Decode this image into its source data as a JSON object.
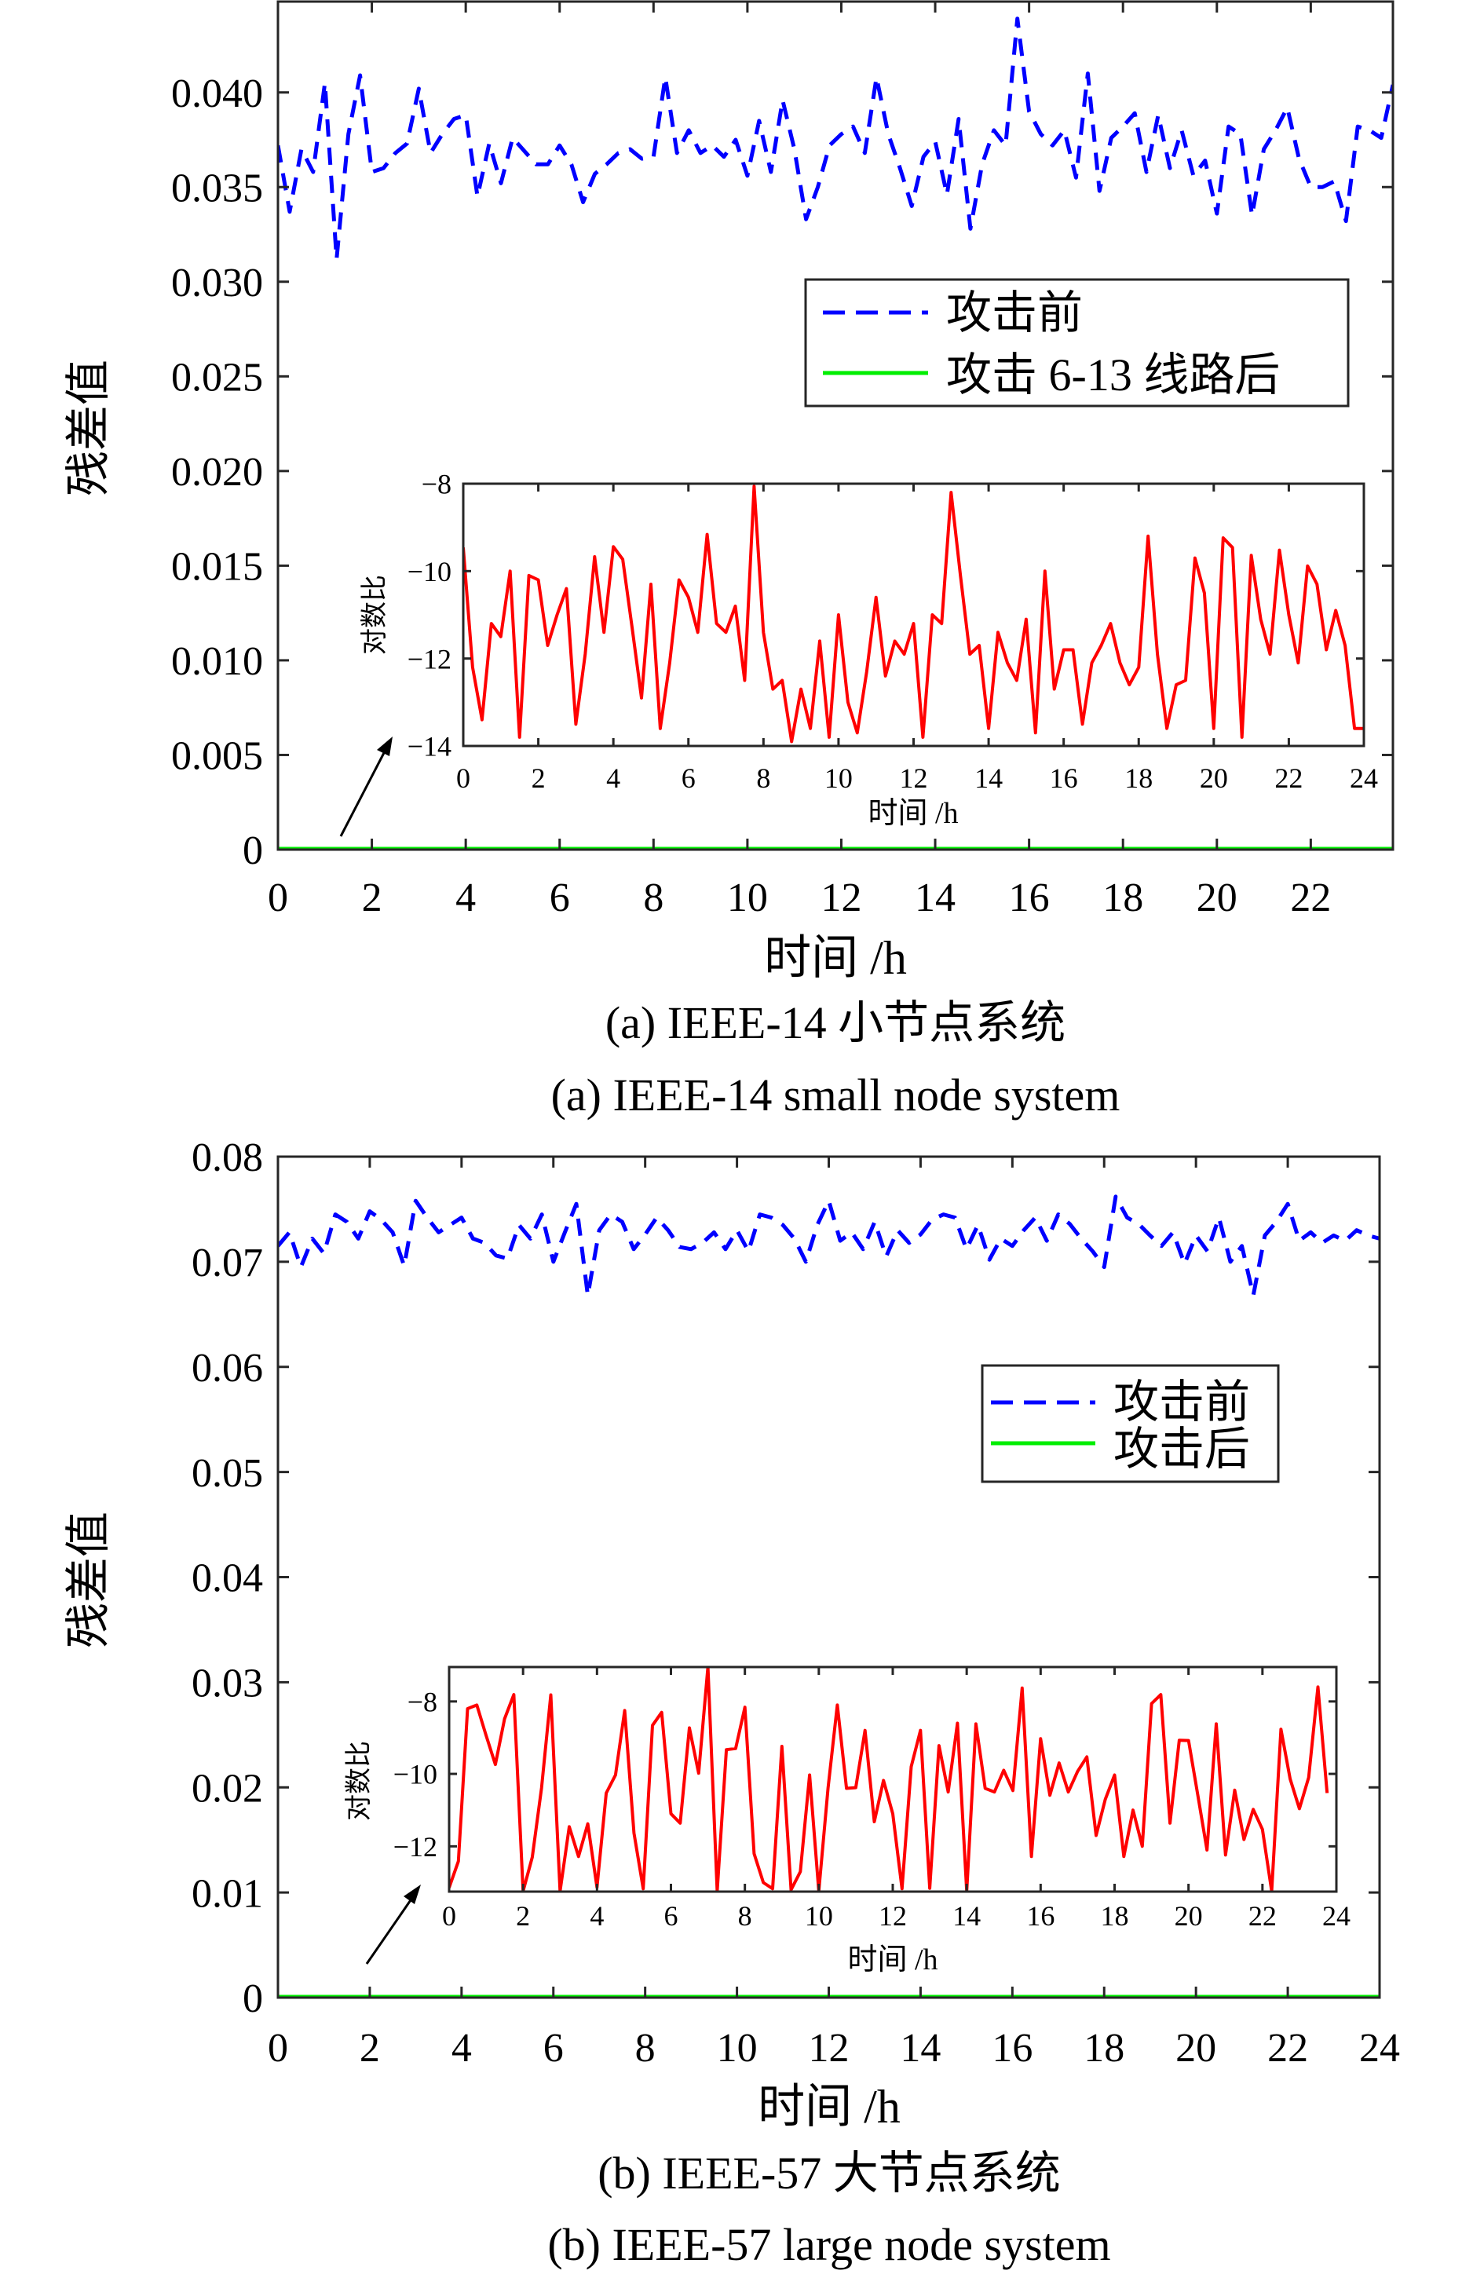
{
  "panels": [
    {
      "caption_cn": "(a) IEEE-14 小节点系统",
      "caption_en": "(a) IEEE-14 small node system",
      "xlabel": "时间 /h",
      "ylabel": "残差值",
      "legend": [
        "攻击前",
        "攻击 6-13 线路后"
      ],
      "inset_xlabel": "时间 /h",
      "inset_ylabel": "对数比"
    },
    {
      "caption_cn": "(b) IEEE-57 大节点系统",
      "caption_en": "(b) IEEE-57 large node system",
      "xlabel": "时间 /h",
      "ylabel": "残差值",
      "legend": [
        "攻击前",
        "攻击后"
      ],
      "inset_xlabel": "时间 /h",
      "inset_ylabel": "对数比"
    }
  ],
  "colors": {
    "before": "#0000ff",
    "after": "#00ee00",
    "log_ratio": "#ff0000",
    "axis": "#262626"
  },
  "chart_data": [
    {
      "type": "line",
      "panel": "a",
      "role": "main",
      "xlabel": "时间 /h",
      "ylabel": "残差值",
      "xlim": [
        0,
        23.75
      ],
      "ylim": [
        0,
        0.0448
      ],
      "xticks": [
        0,
        2,
        4,
        6,
        8,
        10,
        12,
        14,
        16,
        18,
        20,
        22
      ],
      "xtick_labels": [
        "0",
        "2",
        "4",
        "6",
        "8",
        "10",
        "12",
        "14",
        "16",
        "18",
        "20",
        "22"
      ],
      "yticks": [
        0,
        0.005,
        0.01,
        0.015,
        0.02,
        0.025,
        0.03,
        0.035,
        0.04
      ],
      "ytick_labels": [
        "0",
        "0.005",
        "0.010",
        "0.015",
        "0.020",
        "0.025",
        "0.030",
        "0.035",
        "0.040"
      ],
      "legend_position": "upper-right",
      "x_start": 0,
      "x_step": 0.25,
      "series": [
        {
          "name": "攻击前",
          "style": "dashed",
          "color": "#0000ff",
          "values": [
            0.0372,
            0.0337,
            0.037,
            0.0358,
            0.0405,
            0.0312,
            0.0378,
            0.0409,
            0.0358,
            0.036,
            0.0368,
            0.0373,
            0.0402,
            0.0368,
            0.0378,
            0.0386,
            0.0388,
            0.0345,
            0.0373,
            0.0352,
            0.0376,
            0.0369,
            0.0362,
            0.0362,
            0.0372,
            0.0362,
            0.0342,
            0.0357,
            0.0362,
            0.0368,
            0.037,
            0.0365,
            0.0366,
            0.0408,
            0.0368,
            0.038,
            0.0368,
            0.0372,
            0.0366,
            0.0375,
            0.0356,
            0.0385,
            0.0358,
            0.0396,
            0.037,
            0.0333,
            0.035,
            0.0372,
            0.0378,
            0.0382,
            0.0368,
            0.0408,
            0.0378,
            0.036,
            0.034,
            0.0366,
            0.0374,
            0.0346,
            0.0386,
            0.0328,
            0.0362,
            0.038,
            0.0372,
            0.0439,
            0.039,
            0.0378,
            0.0372,
            0.038,
            0.0355,
            0.041,
            0.0348,
            0.0376,
            0.0382,
            0.0389,
            0.0358,
            0.0388,
            0.036,
            0.038,
            0.0356,
            0.0364,
            0.0336,
            0.0382,
            0.0378,
            0.0335,
            0.037,
            0.038,
            0.0392,
            0.0365,
            0.035,
            0.035,
            0.0353,
            0.0332,
            0.0382,
            0.038,
            0.0376,
            0.0404
          ]
        },
        {
          "name": "攻击 6-13 线路后",
          "style": "solid",
          "color": "#00ee00",
          "constant": 0
        }
      ]
    },
    {
      "type": "line",
      "panel": "a",
      "role": "inset",
      "xlabel": "时间 /h",
      "ylabel": "对数比",
      "xlim": [
        0,
        24
      ],
      "ylim": [
        -14,
        -8
      ],
      "xticks": [
        0,
        2,
        4,
        6,
        8,
        10,
        12,
        14,
        16,
        18,
        20,
        22,
        24
      ],
      "xtick_labels": [
        "0",
        "2",
        "4",
        "6",
        "8",
        "10",
        "12",
        "14",
        "16",
        "18",
        "20",
        "22",
        "24"
      ],
      "yticks": [
        -14,
        -12,
        -10,
        -8
      ],
      "ytick_labels": [
        "−14",
        "−12",
        "−10",
        "−8"
      ],
      "x_start": 0,
      "x_step": 0.25,
      "series": [
        {
          "name": "对数比",
          "style": "solid",
          "color": "#ff0000",
          "values": [
            -9.46,
            -12.2,
            -13.4,
            -11.2,
            -11.5,
            -10.0,
            -13.8,
            -10.1,
            -10.2,
            -11.7,
            -11.0,
            -10.4,
            -13.5,
            -11.9,
            -9.67,
            -11.4,
            -9.44,
            -9.73,
            -11.3,
            -12.9,
            -10.3,
            -13.6,
            -12.1,
            -10.2,
            -10.6,
            -11.4,
            -9.16,
            -11.2,
            -11.4,
            -10.8,
            -12.5,
            -8.06,
            -11.4,
            -12.7,
            -12.5,
            -13.9,
            -12.7,
            -13.6,
            -11.6,
            -13.8,
            -11.0,
            -13.0,
            -13.7,
            -12.3,
            -10.6,
            -12.4,
            -11.6,
            -11.9,
            -11.2,
            -13.8,
            -11.0,
            -11.2,
            -8.2,
            -10.1,
            -11.9,
            -11.7,
            -13.6,
            -11.4,
            -12.1,
            -12.5,
            -11.1,
            -13.7,
            -10.0,
            -12.7,
            -11.8,
            -11.8,
            -13.5,
            -12.1,
            -11.7,
            -11.2,
            -12.1,
            -12.6,
            -12.2,
            -9.2,
            -11.9,
            -13.6,
            -12.6,
            -12.5,
            -9.7,
            -10.5,
            -13.6,
            -9.24,
            -9.46,
            -13.8,
            -9.64,
            -11.1,
            -11.9,
            -9.52,
            -11.0,
            -12.1,
            -9.88,
            -10.3,
            -11.8,
            -10.9,
            -11.7,
            -13.6,
            -13.6
          ]
        }
      ]
    },
    {
      "type": "line",
      "panel": "b",
      "role": "main",
      "xlabel": "时间 /h",
      "ylabel": "残差值",
      "xlim": [
        0,
        24
      ],
      "ylim": [
        0,
        0.08
      ],
      "xticks": [
        0,
        2,
        4,
        6,
        8,
        10,
        12,
        14,
        16,
        18,
        20,
        22,
        24
      ],
      "xtick_labels": [
        "0",
        "2",
        "4",
        "6",
        "8",
        "10",
        "12",
        "14",
        "16",
        "18",
        "20",
        "22",
        "24"
      ],
      "yticks": [
        0,
        0.01,
        0.02,
        0.03,
        0.04,
        0.05,
        0.06,
        0.07,
        0.08
      ],
      "ytick_labels": [
        "0",
        "0.01",
        "0.02",
        "0.03",
        "0.04",
        "0.05",
        "0.06",
        "0.07",
        "0.08"
      ],
      "legend_position": "upper-right",
      "x_start": 0,
      "x_step": 0.25,
      "series": [
        {
          "name": "攻击前",
          "style": "dashed",
          "color": "#0000ff",
          "values": [
            0.0715,
            0.0728,
            0.0695,
            0.0722,
            0.0708,
            0.0745,
            0.0738,
            0.0722,
            0.0748,
            0.074,
            0.0728,
            0.0696,
            0.0758,
            0.0742,
            0.0728,
            0.0735,
            0.0742,
            0.0722,
            0.0718,
            0.0706,
            0.0703,
            0.0735,
            0.0722,
            0.0745,
            0.07,
            0.0728,
            0.0755,
            0.0668,
            0.073,
            0.0745,
            0.0738,
            0.0712,
            0.0726,
            0.0742,
            0.073,
            0.0714,
            0.0712,
            0.0718,
            0.0728,
            0.0712,
            0.073,
            0.071,
            0.0745,
            0.0742,
            0.0735,
            0.0722,
            0.07,
            0.0735,
            0.0758,
            0.072,
            0.0728,
            0.0712,
            0.0738,
            0.0705,
            0.073,
            0.0718,
            0.0726,
            0.074,
            0.0745,
            0.0742,
            0.0712,
            0.0735,
            0.0702,
            0.0722,
            0.0715,
            0.073,
            0.0742,
            0.072,
            0.0745,
            0.0736,
            0.0722,
            0.071,
            0.0695,
            0.0762,
            0.0742,
            0.0736,
            0.0725,
            0.0715,
            0.0728,
            0.0698,
            0.0725,
            0.071,
            0.0742,
            0.07,
            0.0715,
            0.0668,
            0.0725,
            0.0738,
            0.0755,
            0.072,
            0.0728,
            0.0718,
            0.0725,
            0.072,
            0.073,
            0.0725,
            0.0722
          ]
        },
        {
          "name": "攻击后",
          "style": "solid",
          "color": "#00ee00",
          "constant": 0
        }
      ]
    },
    {
      "type": "line",
      "panel": "b",
      "role": "inset",
      "xlabel": "时间 /h",
      "ylabel": "对数比",
      "xlim": [
        0,
        24
      ],
      "ylim": [
        -13.25,
        -7.05
      ],
      "xticks": [
        0,
        2,
        4,
        6,
        8,
        10,
        12,
        14,
        16,
        18,
        20,
        22,
        24
      ],
      "xtick_labels": [
        "0",
        "2",
        "4",
        "6",
        "8",
        "10",
        "12",
        "14",
        "16",
        "18",
        "20",
        "22",
        "24"
      ],
      "yticks": [
        -12,
        -10,
        -8
      ],
      "ytick_labels": [
        "−12",
        "−10",
        "−8"
      ],
      "x_start": 0,
      "x_step": 0.25,
      "series": [
        {
          "name": "对数比",
          "style": "solid",
          "color": "#ff0000",
          "values": [
            -13.14,
            -12.41,
            -8.2,
            -8.1,
            -8.94,
            -9.74,
            -8.48,
            -7.81,
            -13.24,
            -12.3,
            -10.39,
            -7.82,
            -13.24,
            -11.46,
            -12.28,
            -11.38,
            -13.13,
            -10.53,
            -10.03,
            -8.25,
            -11.63,
            -13.17,
            -8.66,
            -8.3,
            -11.1,
            -11.36,
            -8.73,
            -9.98,
            -7.05,
            -13.24,
            -9.33,
            -9.3,
            -8.16,
            -12.2,
            -13.0,
            -13.17,
            -9.24,
            -13.2,
            -12.7,
            -10.03,
            -13.24,
            -10.39,
            -8.1,
            -10.4,
            -10.38,
            -8.8,
            -11.32,
            -10.18,
            -11.1,
            -13.17,
            -9.8,
            -8.8,
            -13.16,
            -9.22,
            -10.5,
            -8.6,
            -13.24,
            -8.62,
            -10.4,
            -10.5,
            -9.9,
            -10.46,
            -7.63,
            -12.28,
            -9.03,
            -10.59,
            -9.7,
            -10.5,
            -9.93,
            -9.53,
            -11.7,
            -10.7,
            -10.03,
            -12.28,
            -11.0,
            -12.0,
            -8.06,
            -7.81,
            -11.36,
            -9.07,
            -9.08,
            -10.57,
            -12.1,
            -8.62,
            -12.24,
            -10.45,
            -11.81,
            -10.98,
            -11.53,
            -13.24,
            -8.77,
            -10.14,
            -10.96,
            -10.1,
            -7.6,
            -10.53
          ]
        }
      ]
    }
  ]
}
